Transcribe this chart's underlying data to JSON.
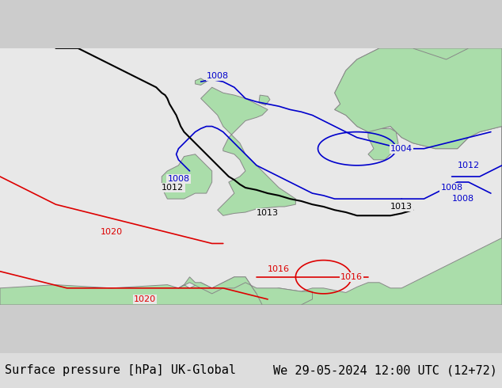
{
  "title_left": "Surface pressure [hPa] UK-Global",
  "title_right": "We 29-05-2024 12:00 UTC (12+72)",
  "title_fontsize": 11,
  "bg_color": "#e8e8e8",
  "land_color": "#aaddaa",
  "coast_color": "#888888",
  "coast_linewidth": 0.7,
  "figsize": [
    6.34,
    4.9
  ],
  "dpi": 100,
  "xlim": [
    -25,
    20
  ],
  "ylim": [
    42,
    65
  ],
  "contour_blue_color": "#0000cc",
  "contour_black_color": "#000000",
  "contour_red_color": "#dd0000",
  "contour_linewidth": 1.2,
  "label_fontsize": 8
}
